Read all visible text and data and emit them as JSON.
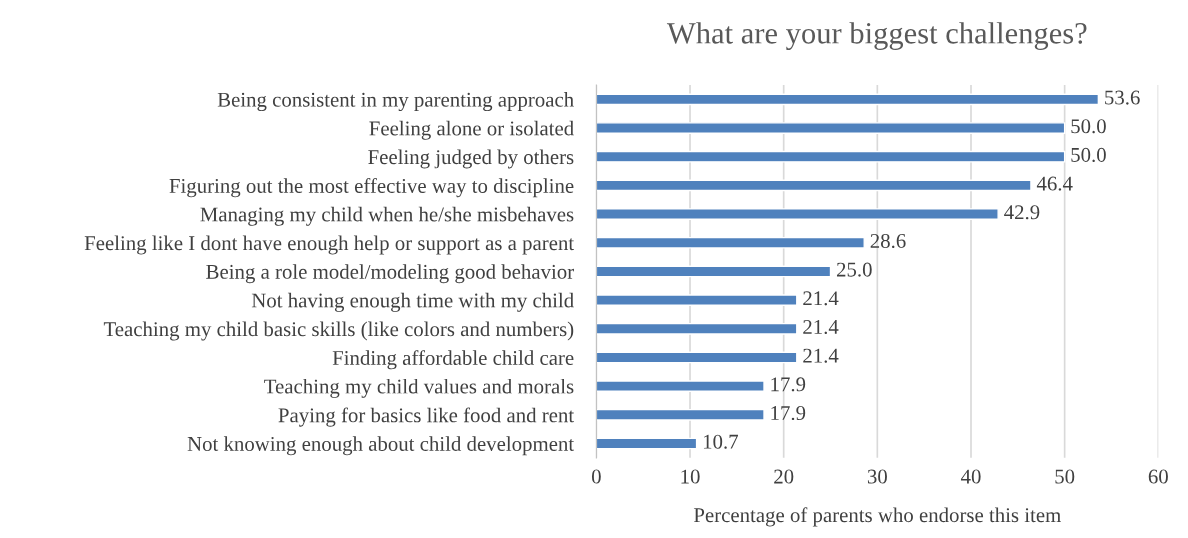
{
  "chart_data": {
    "type": "bar",
    "orientation": "horizontal",
    "title": "What are your biggest challenges?",
    "xlabel": "Percentage of parents who endorse this item",
    "categories": [
      "Being consistent in my parenting approach",
      "Feeling alone or isolated",
      "Feeling judged by others",
      "Figuring out the most effective way to discipline",
      "Managing my child when he/she misbehaves",
      "Feeling like I dont have enough help or support as a parent",
      "Being a role model/modeling good behavior",
      "Not having enough time with my child",
      "Teaching my child basic skills (like colors and numbers)",
      "Finding affordable child care",
      "Teaching my child values and morals",
      "Paying for basics like food and rent",
      "Not knowing enough about child development"
    ],
    "values": [
      53.6,
      50.0,
      50.0,
      46.4,
      42.9,
      28.6,
      25.0,
      21.4,
      21.4,
      21.4,
      17.9,
      17.9,
      10.7
    ],
    "value_labels": [
      "53.6",
      "50.0",
      "50.0",
      "46.4",
      "42.9",
      "28.6",
      "25.0",
      "21.4",
      "21.4",
      "21.4",
      "17.9",
      "17.9",
      "10.7"
    ],
    "color": "#4f81bd",
    "xlim": [
      0,
      60
    ],
    "xticks": [
      0,
      10,
      20,
      30,
      40,
      50,
      60
    ],
    "grid": "x",
    "legend": false
  }
}
